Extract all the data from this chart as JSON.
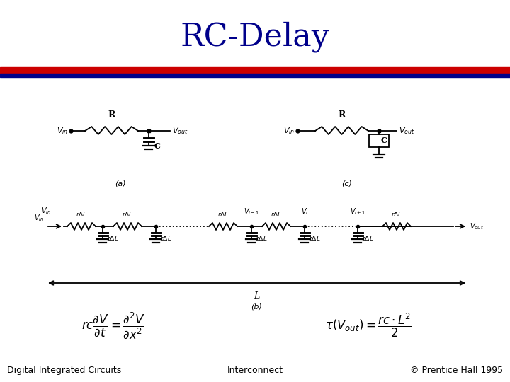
{
  "title": "RC-Delay",
  "title_color": "#00008B",
  "title_fontsize": 32,
  "bg_color": "#FFFFFF",
  "stripe1_color": "#CC0000",
  "stripe2_color": "#00008B",
  "footer_left": "Digital Integrated Circuits",
  "footer_center": "Interconnect",
  "footer_right": "© Prentice Hall 1995",
  "footer_fontsize": 9
}
